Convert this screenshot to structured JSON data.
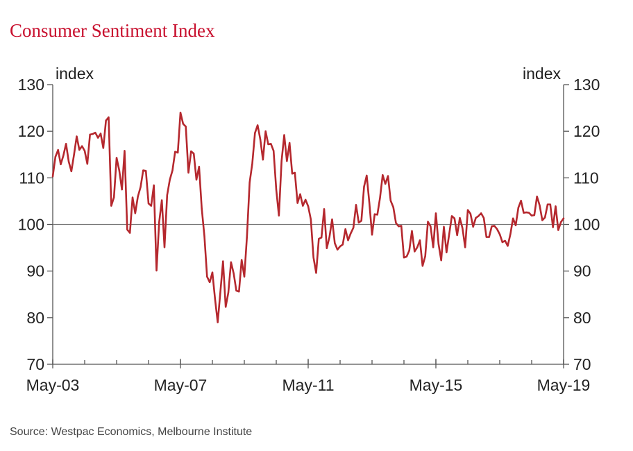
{
  "chart_data": {
    "type": "line",
    "title": "Consumer Sentiment Index",
    "ylabel_left": "index",
    "ylabel_right": "index",
    "ylim": [
      70,
      130
    ],
    "yticks": [
      70,
      80,
      90,
      100,
      110,
      120,
      130
    ],
    "x_range": [
      "May-03",
      "May-19"
    ],
    "xticks": [
      "May-03",
      "May-07",
      "May-11",
      "May-15",
      "May-19"
    ],
    "reference_line": 100,
    "grid": false,
    "line_color": "#b5282e",
    "series": [
      {
        "name": "",
        "x": [
          "May-03",
          "Jun-03",
          "Jul-03",
          "Aug-03",
          "Sep-03",
          "Oct-03",
          "Nov-03",
          "Dec-03",
          "Jan-04",
          "Feb-04",
          "Mar-04",
          "Apr-04",
          "May-04",
          "Jun-04",
          "Jul-04",
          "Aug-04",
          "Sep-04",
          "Oct-04",
          "Nov-04",
          "Dec-04",
          "Jan-05",
          "Feb-05",
          "Mar-05",
          "Apr-05",
          "May-05",
          "Jun-05",
          "Jul-05",
          "Aug-05",
          "Sep-05",
          "Oct-05",
          "Nov-05",
          "Dec-05",
          "Jan-06",
          "Feb-06",
          "Mar-06",
          "Apr-06",
          "May-06",
          "Jun-06",
          "Jul-06",
          "Aug-06",
          "Sep-06",
          "Oct-06",
          "Nov-06",
          "Dec-06",
          "Jan-07",
          "Feb-07",
          "Mar-07",
          "Apr-07",
          "May-07",
          "Jun-07",
          "Jul-07",
          "Aug-07",
          "Sep-07",
          "Oct-07",
          "Nov-07",
          "Dec-07",
          "Jan-08",
          "Feb-08",
          "Mar-08",
          "Apr-08",
          "May-08",
          "Jun-08",
          "Jul-08",
          "Aug-08",
          "Sep-08",
          "Oct-08",
          "Nov-08",
          "Dec-08",
          "Jan-09",
          "Feb-09",
          "Mar-09",
          "Apr-09",
          "May-09",
          "Jun-09",
          "Jul-09",
          "Aug-09",
          "Sep-09",
          "Oct-09",
          "Nov-09",
          "Dec-09",
          "Jan-10",
          "Feb-10",
          "Mar-10",
          "Apr-10",
          "May-10",
          "Jun-10",
          "Jul-10",
          "Aug-10",
          "Sep-10",
          "Oct-10",
          "Nov-10",
          "Dec-10",
          "Jan-11",
          "Feb-11",
          "Mar-11",
          "Apr-11",
          "May-11",
          "Jun-11",
          "Jul-11",
          "Aug-11",
          "Sep-11",
          "Oct-11",
          "Nov-11",
          "Dec-11",
          "Jan-12",
          "Feb-12",
          "Mar-12",
          "Apr-12",
          "May-12",
          "Jun-12",
          "Jul-12",
          "Aug-12",
          "Sep-12",
          "Oct-12",
          "Nov-12",
          "Dec-12",
          "Jan-13",
          "Feb-13",
          "Mar-13",
          "Apr-13",
          "May-13",
          "Jun-13",
          "Jul-13",
          "Aug-13",
          "Sep-13",
          "Oct-13",
          "Nov-13",
          "Dec-13",
          "Jan-14",
          "Feb-14",
          "Mar-14",
          "Apr-14",
          "May-14",
          "Jun-14",
          "Jul-14",
          "Aug-14",
          "Sep-14",
          "Oct-14",
          "Nov-14",
          "Dec-14",
          "Jan-15",
          "Feb-15",
          "Mar-15",
          "Apr-15",
          "May-15",
          "Jun-15",
          "Jul-15",
          "Aug-15",
          "Sep-15",
          "Oct-15",
          "Nov-15",
          "Dec-15",
          "Jan-16",
          "Feb-16",
          "Mar-16",
          "Apr-16",
          "May-16",
          "Jun-16",
          "Jul-16",
          "Aug-16",
          "Sep-16",
          "Oct-16",
          "Nov-16",
          "Dec-16",
          "Jan-17",
          "Feb-17",
          "Mar-17",
          "Apr-17",
          "May-17",
          "Jun-17",
          "Jul-17",
          "Aug-17",
          "Sep-17",
          "Oct-17",
          "Nov-17",
          "Dec-17",
          "Jan-18",
          "Feb-18",
          "Mar-18",
          "Apr-18",
          "May-18",
          "Jun-18",
          "Jul-18",
          "Aug-18",
          "Sep-18",
          "Oct-18",
          "Nov-18",
          "Dec-18",
          "Jan-19",
          "Feb-19",
          "Mar-19",
          "Apr-19",
          "May-19"
        ],
        "values": [
          110.3,
          114.5,
          116.0,
          112.9,
          114.8,
          117.3,
          113.5,
          111.4,
          115.0,
          118.9,
          116.0,
          116.8,
          115.8,
          113.0,
          119.3,
          119.4,
          119.7,
          118.6,
          119.5,
          116.4,
          122.3,
          123.0,
          104.0,
          105.8,
          114.3,
          111.6,
          107.5,
          115.8,
          98.9,
          98.2,
          105.8,
          102.4,
          106.0,
          108.0,
          111.6,
          111.5,
          104.5,
          104.0,
          108.4,
          90.1,
          100.5,
          105.2,
          95.1,
          106.3,
          109.6,
          111.6,
          115.6,
          115.4,
          124.0,
          121.6,
          121.0,
          111.1,
          115.7,
          115.2,
          109.6,
          112.4,
          103.4,
          97.5,
          88.8,
          87.6,
          89.7,
          84.0,
          79.0,
          85.5,
          92.1,
          82.3,
          85.4,
          91.9,
          89.5,
          85.8,
          85.6,
          92.4,
          88.8,
          97.5,
          109.0,
          113.1,
          119.6,
          121.3,
          118.3,
          113.9,
          120.0,
          117.2,
          117.3,
          115.8,
          107.5,
          101.9,
          113.6,
          119.2,
          113.6,
          117.5,
          110.9,
          111.1,
          104.6,
          106.5,
          104.0,
          105.3,
          103.9,
          101.1,
          92.9,
          89.6,
          96.9,
          97.2,
          103.3,
          94.9,
          97.3,
          101.1,
          96.0,
          94.6,
          95.3,
          95.7,
          99.0,
          96.6,
          98.1,
          99.3,
          104.2,
          100.4,
          100.8,
          108.1,
          110.5,
          104.6,
          97.8,
          102.2,
          102.1,
          105.7,
          110.6,
          108.7,
          110.4,
          105.1,
          103.7,
          100.3,
          99.6,
          99.7,
          92.9,
          93.1,
          94.4,
          98.6,
          94.2,
          95.1,
          96.6,
          91.1,
          93.2,
          100.6,
          99.6,
          95.1,
          102.4,
          95.8,
          92.3,
          99.5,
          94.0,
          97.9,
          101.8,
          101.3,
          97.7,
          101.4,
          99.2,
          95.1,
          103.1,
          102.3,
          99.5,
          101.4,
          101.8,
          102.4,
          101.4,
          97.3,
          97.3,
          99.6,
          99.7,
          99.0,
          97.9,
          96.2,
          96.5,
          95.4,
          97.9,
          101.3,
          99.8,
          103.6,
          105.1,
          102.5,
          102.6,
          102.5,
          101.9,
          102.0,
          106.0,
          104.1,
          100.9,
          101.5,
          104.3,
          104.3,
          99.4,
          103.9,
          98.8,
          100.5,
          101.3
        ]
      }
    ]
  },
  "source_text": "Source: Westpac Economics, Melbourne Institute"
}
